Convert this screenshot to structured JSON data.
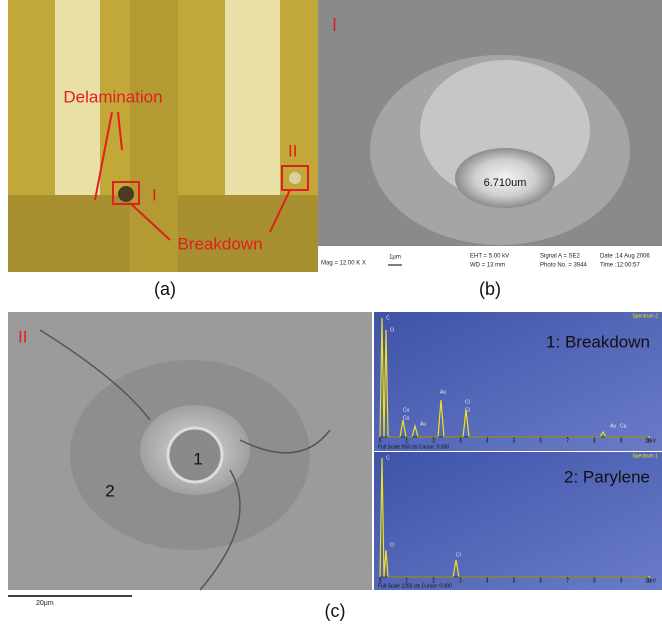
{
  "panel_a": {
    "label": "(a)",
    "delamination": "Delamination",
    "breakdown": "Breakdown",
    "site_1": "I",
    "site_2": "II"
  },
  "panel_b": {
    "label": "(b)",
    "site": "I",
    "measurement": "6.710um",
    "scale": "1μm",
    "info": [
      "Mag = 12.00 K X",
      "EHT = 5.00 kV",
      "WD = 13 mm",
      "Signal A = SE2",
      "Photo No. = 3944",
      "Date :14 Aug 2006",
      "Time :12:00:57"
    ]
  },
  "panel_c": {
    "label": "(c)",
    "site": "II",
    "point_1": "1",
    "point_2": "2",
    "scale_bar": "20μm",
    "x_ticks": [
      0,
      1,
      2,
      3,
      4,
      5,
      6,
      7,
      8,
      9,
      10
    ],
    "x_unit": "keV",
    "spectra": [
      {
        "title": "1: Breakdown",
        "name": "Spectrum 2",
        "footer": "Full Scale 593 cts Cursor: 0.000",
        "peaks": [
          "C",
          "O",
          "Cu",
          "Cu",
          "Au",
          "Au",
          "Cl",
          "Cl",
          "Au",
          "Cu"
        ]
      },
      {
        "title": "2: Parylene",
        "name": "Spectrum 1",
        "footer": "Full Scale 1263 cts Cursor: 0.000",
        "peaks": [
          "C",
          "O",
          "Cl"
        ]
      }
    ]
  }
}
